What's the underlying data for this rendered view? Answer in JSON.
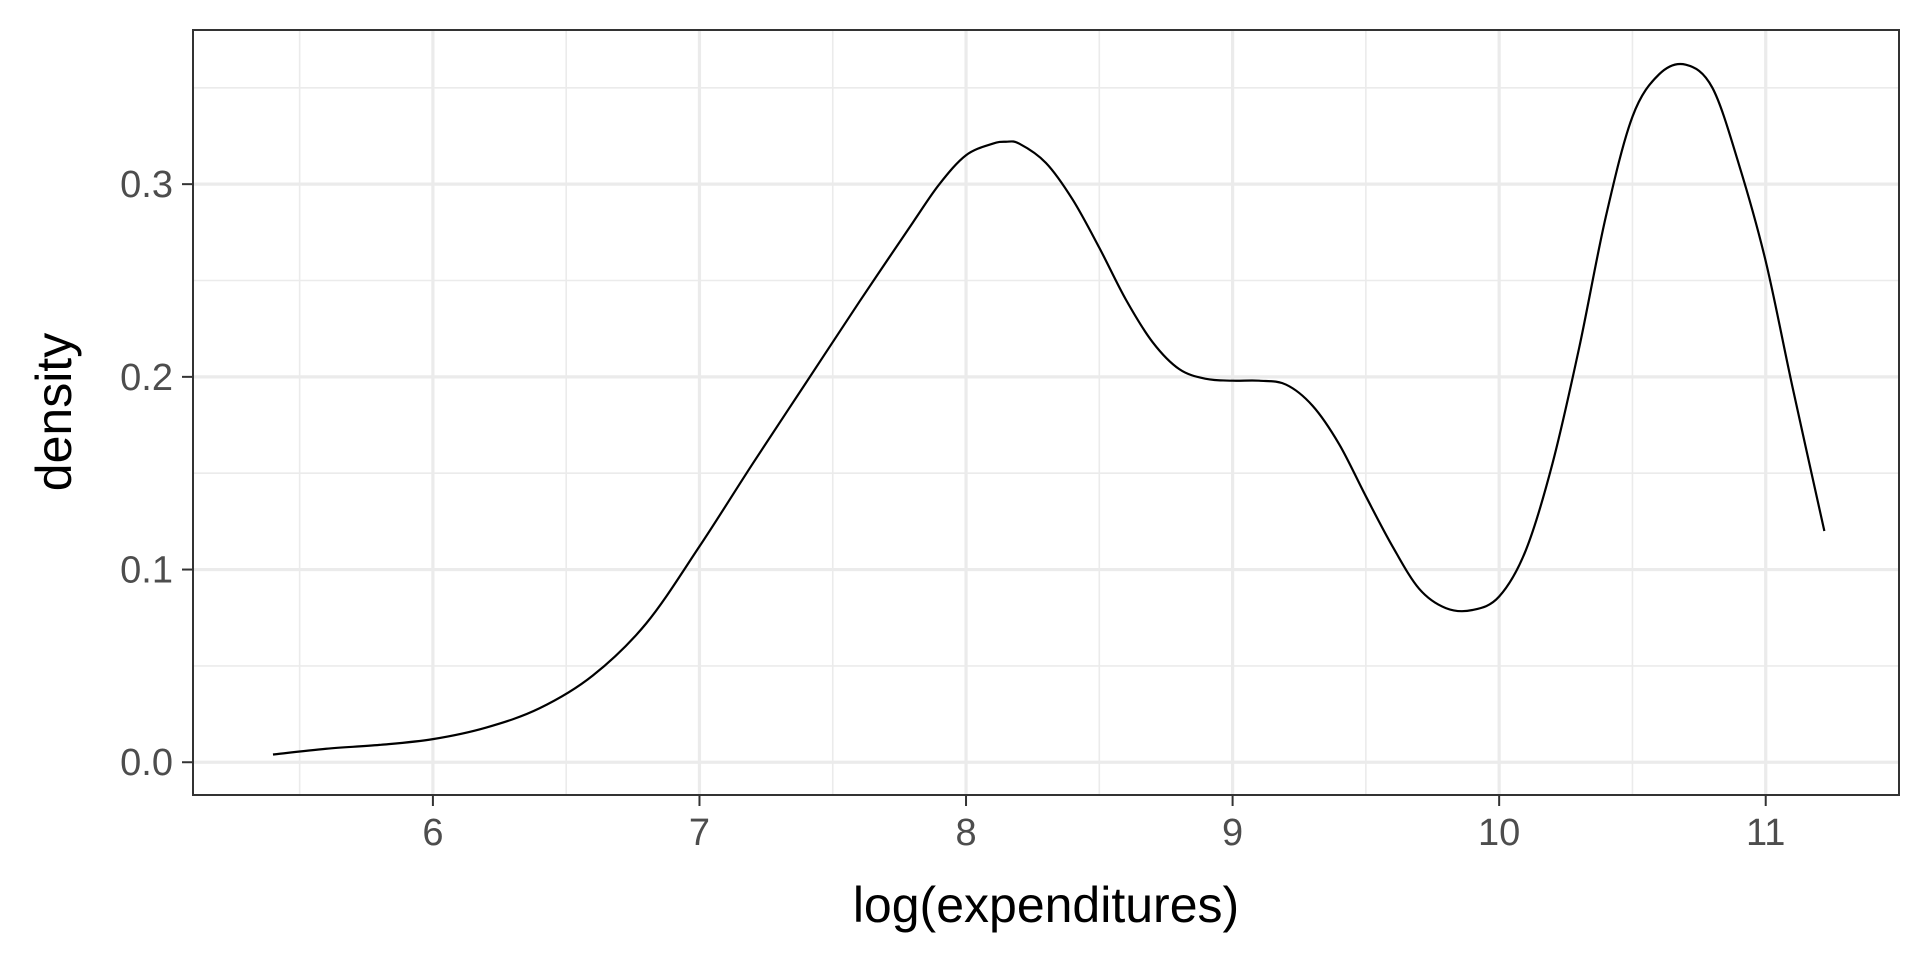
{
  "chart_data": {
    "type": "line",
    "title": "",
    "xlabel": "log(expenditures)",
    "ylabel": "density",
    "xlim": [
      5.1,
      11.5
    ],
    "ylim": [
      -0.017,
      0.38
    ],
    "x_ticks": [
      6,
      7,
      8,
      9,
      10,
      11
    ],
    "x_tick_labels": [
      "6",
      "7",
      "8",
      "9",
      "10",
      "11"
    ],
    "x_minor_ticks": [
      5.5,
      6.5,
      7.5,
      8.5,
      9.5,
      10.5,
      11.5
    ],
    "y_ticks": [
      0.0,
      0.1,
      0.2,
      0.3
    ],
    "y_tick_labels": [
      "0.0",
      "0.1",
      "0.2",
      "0.3"
    ],
    "y_minor_ticks": [
      0.05,
      0.15,
      0.25,
      0.35
    ],
    "grid": true,
    "legend": "none",
    "colors": {
      "line": "#000000",
      "grid": "#ebebeb",
      "panel_border": "#333333",
      "tick_label": "#4d4d4d"
    },
    "series": [
      {
        "x": [
          5.4,
          5.6,
          5.8,
          6.0,
          6.2,
          6.4,
          6.6,
          6.8,
          7.0,
          7.2,
          7.4,
          7.6,
          7.8,
          7.9,
          8.0,
          8.1,
          8.15,
          8.2,
          8.3,
          8.4,
          8.5,
          8.6,
          8.7,
          8.8,
          8.9,
          9.0,
          9.1,
          9.2,
          9.3,
          9.4,
          9.5,
          9.6,
          9.7,
          9.8,
          9.9,
          10.0,
          10.1,
          10.2,
          10.3,
          10.4,
          10.5,
          10.6,
          10.7,
          10.8,
          10.9,
          11.0,
          11.1,
          11.22
        ],
        "y": [
          0.004,
          0.007,
          0.009,
          0.012,
          0.018,
          0.028,
          0.045,
          0.072,
          0.112,
          0.155,
          0.197,
          0.239,
          0.28,
          0.3,
          0.315,
          0.321,
          0.322,
          0.321,
          0.311,
          0.292,
          0.267,
          0.24,
          0.218,
          0.204,
          0.199,
          0.198,
          0.198,
          0.196,
          0.185,
          0.165,
          0.138,
          0.112,
          0.09,
          0.08,
          0.079,
          0.086,
          0.11,
          0.155,
          0.215,
          0.283,
          0.335,
          0.357,
          0.362,
          0.35,
          0.31,
          0.26,
          0.195,
          0.12
        ]
      }
    ]
  }
}
